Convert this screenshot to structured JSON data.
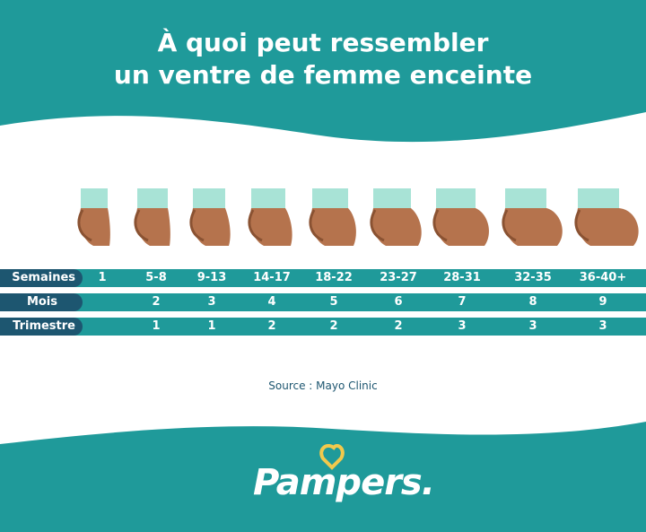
{
  "header": {
    "title_line1": "À quoi peut ressembler",
    "title_line2": "un ventre de femme enceinte"
  },
  "colors": {
    "teal": "#1f9a9a",
    "dark_label": "#1d5670",
    "belly_skin": "#b5734d",
    "shirt": "#a8e3d6",
    "logo_heart": "#f2c94c"
  },
  "table": {
    "rows": [
      {
        "label": "Semaines",
        "cells": [
          "1",
          "5-8",
          "9-13",
          "14-17",
          "18-22",
          "23-27",
          "28-31",
          "32-35",
          "36-40+"
        ]
      },
      {
        "label": "Mois",
        "cells": [
          "",
          "2",
          "3",
          "4",
          "5",
          "6",
          "7",
          "8",
          "9"
        ]
      },
      {
        "label": "Trimestre",
        "cells": [
          "",
          "1",
          "1",
          "2",
          "2",
          "2",
          "3",
          "3",
          "3"
        ]
      }
    ]
  },
  "source": "Source : Mayo Clinic",
  "logo": {
    "text": "Pampers."
  }
}
